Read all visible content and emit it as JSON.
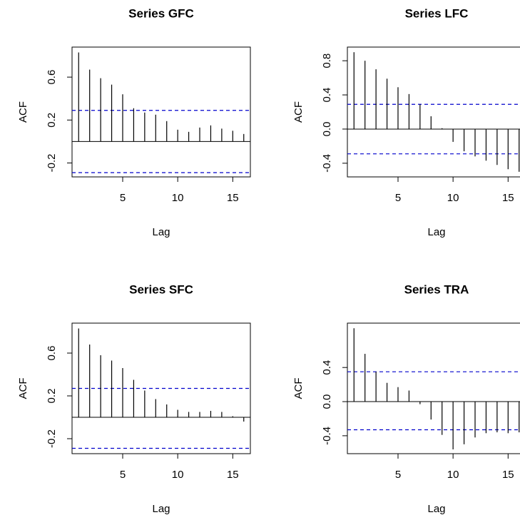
{
  "chart_data": [
    {
      "type": "acf",
      "title": "Series GFC",
      "x_label": "Lag",
      "y_label": "ACF",
      "x": [
        1,
        2,
        3,
        4,
        5,
        6,
        7,
        8,
        9,
        10,
        11,
        12,
        13,
        14,
        15,
        16
      ],
      "values": [
        0.83,
        0.67,
        0.59,
        0.53,
        0.44,
        0.31,
        0.27,
        0.25,
        0.19,
        0.11,
        0.09,
        0.13,
        0.15,
        0.12,
        0.1,
        0.07
      ],
      "color": "#000000",
      "ci_lines": [
        0.29,
        -0.29
      ],
      "ci_color": "#0000cc",
      "xlim": [
        0.4,
        16.6
      ],
      "xticks": [
        5,
        10,
        15
      ],
      "ylim": [
        -0.33,
        0.88
      ],
      "yticks": [
        -0.2,
        0.2,
        0.6
      ]
    },
    {
      "type": "acf",
      "title": "Series LFC",
      "x_label": "Lag",
      "y_label": "ACF",
      "x": [
        1,
        2,
        3,
        4,
        5,
        6,
        7,
        8,
        9,
        10,
        11,
        12,
        13,
        14,
        15,
        16
      ],
      "values": [
        0.9,
        0.8,
        0.7,
        0.59,
        0.49,
        0.41,
        0.29,
        0.15,
        0.01,
        -0.15,
        -0.26,
        -0.32,
        -0.37,
        -0.42,
        -0.47,
        -0.5
      ],
      "color": "#000000",
      "ci_lines": [
        0.29,
        -0.29
      ],
      "ci_color": "#0000cc",
      "xlim": [
        0.4,
        16.6
      ],
      "xticks": [
        5,
        10,
        15
      ],
      "ylim": [
        -0.56,
        0.96
      ],
      "yticks": [
        -0.4,
        {
          "value": 0,
          "label": "0.0"
        },
        0.4,
        0.8
      ]
    },
    {
      "type": "acf",
      "title": "Series SFC",
      "x_label": "Lag",
      "y_label": "ACF",
      "x": [
        1,
        2,
        3,
        4,
        5,
        6,
        7,
        8,
        9,
        10,
        11,
        12,
        13,
        14,
        15,
        16
      ],
      "values": [
        0.83,
        0.68,
        0.58,
        0.53,
        0.46,
        0.35,
        0.25,
        0.17,
        0.12,
        0.07,
        0.05,
        0.05,
        0.06,
        0.05,
        0.01,
        -0.04
      ],
      "color": "#000000",
      "ci_lines": [
        0.27,
        -0.29
      ],
      "ci_color": "#0000cc",
      "xlim": [
        0.4,
        16.6
      ],
      "xticks": [
        5,
        10,
        15
      ],
      "ylim": [
        -0.34,
        0.88
      ],
      "yticks": [
        -0.2,
        0.2,
        0.6
      ]
    },
    {
      "type": "acf",
      "title": "Series TRA",
      "x_label": "Lag",
      "y_label": "ACF",
      "x": [
        1,
        2,
        3,
        4,
        5,
        6,
        7,
        8,
        9,
        10,
        11,
        12,
        13,
        14,
        15,
        16
      ],
      "values": [
        0.86,
        0.56,
        0.35,
        0.22,
        0.17,
        0.13,
        -0.03,
        -0.21,
        -0.39,
        -0.56,
        -0.5,
        -0.42,
        -0.37,
        -0.36,
        -0.37,
        -0.36
      ],
      "color": "#000000",
      "ci_lines": [
        0.35,
        -0.33
      ],
      "ci_color": "#0000cc",
      "xlim": [
        0.4,
        16.6
      ],
      "xticks": [
        5,
        10,
        15
      ],
      "ylim": [
        -0.61,
        0.92
      ],
      "yticks": [
        -0.4,
        {
          "value": 0,
          "label": "0.0"
        },
        0.4
      ]
    }
  ]
}
